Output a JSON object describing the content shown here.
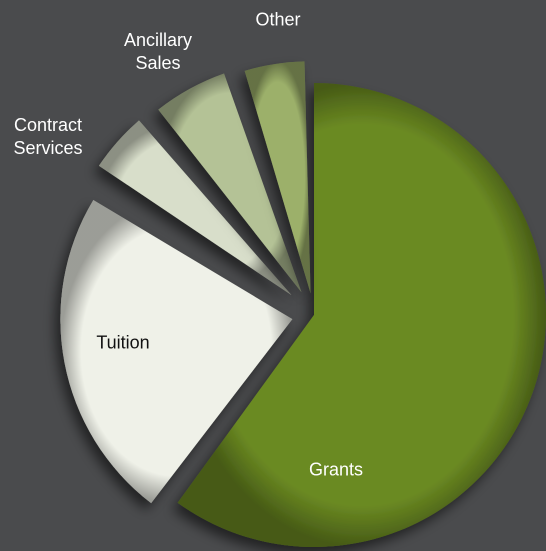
{
  "chart_data": {
    "type": "pie",
    "title": "",
    "slices": [
      {
        "label": "Grants",
        "value": 60,
        "color": "#6b8a22"
      },
      {
        "label": "Tuition",
        "value": 24,
        "color": "#eff1e8"
      },
      {
        "label": "Contract Services",
        "value": 5,
        "color": "#d8deca"
      },
      {
        "label": "Ancillary Sales",
        "value": 6,
        "color": "#b4c296"
      },
      {
        "label": "Other",
        "value": 5,
        "color": "#9cb06a"
      }
    ],
    "labels_display": {
      "Grants": "Grants",
      "Tuition": "Tuition",
      "Contract Services": "Contract\nServices",
      "Ancillary Sales": "Ancillary\nSales",
      "Other": "Other"
    },
    "legend": "none",
    "exploded": true
  }
}
